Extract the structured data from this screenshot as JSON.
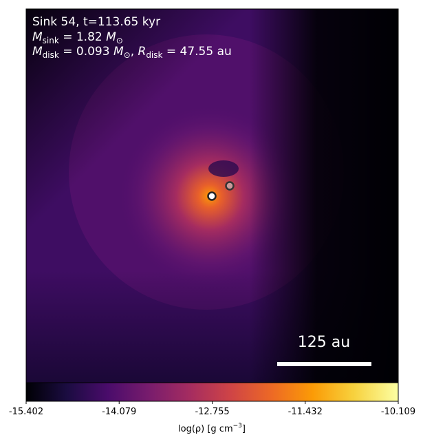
{
  "chart_data": {
    "type": "heatmap",
    "annotation_lines": [
      [
        "Sink 54, t=113.65 kyr"
      ],
      [
        "M",
        "sink",
        " = 1.82 ",
        "M",
        "⊙"
      ],
      [
        "M",
        "disk",
        " = 0.093 ",
        "M",
        "⊙",
        ", ",
        "R",
        "disk",
        " = 47.55 au"
      ]
    ],
    "scale_bar_label": "125 au",
    "colormap": "inferno",
    "clim": [
      -15.402,
      -10.109
    ],
    "cticks": [
      -15.402,
      -14.079,
      -12.755,
      -11.432,
      -10.109
    ],
    "colorbar_label": [
      "log(ρ) [g cm",
      "−3",
      "]"
    ]
  }
}
